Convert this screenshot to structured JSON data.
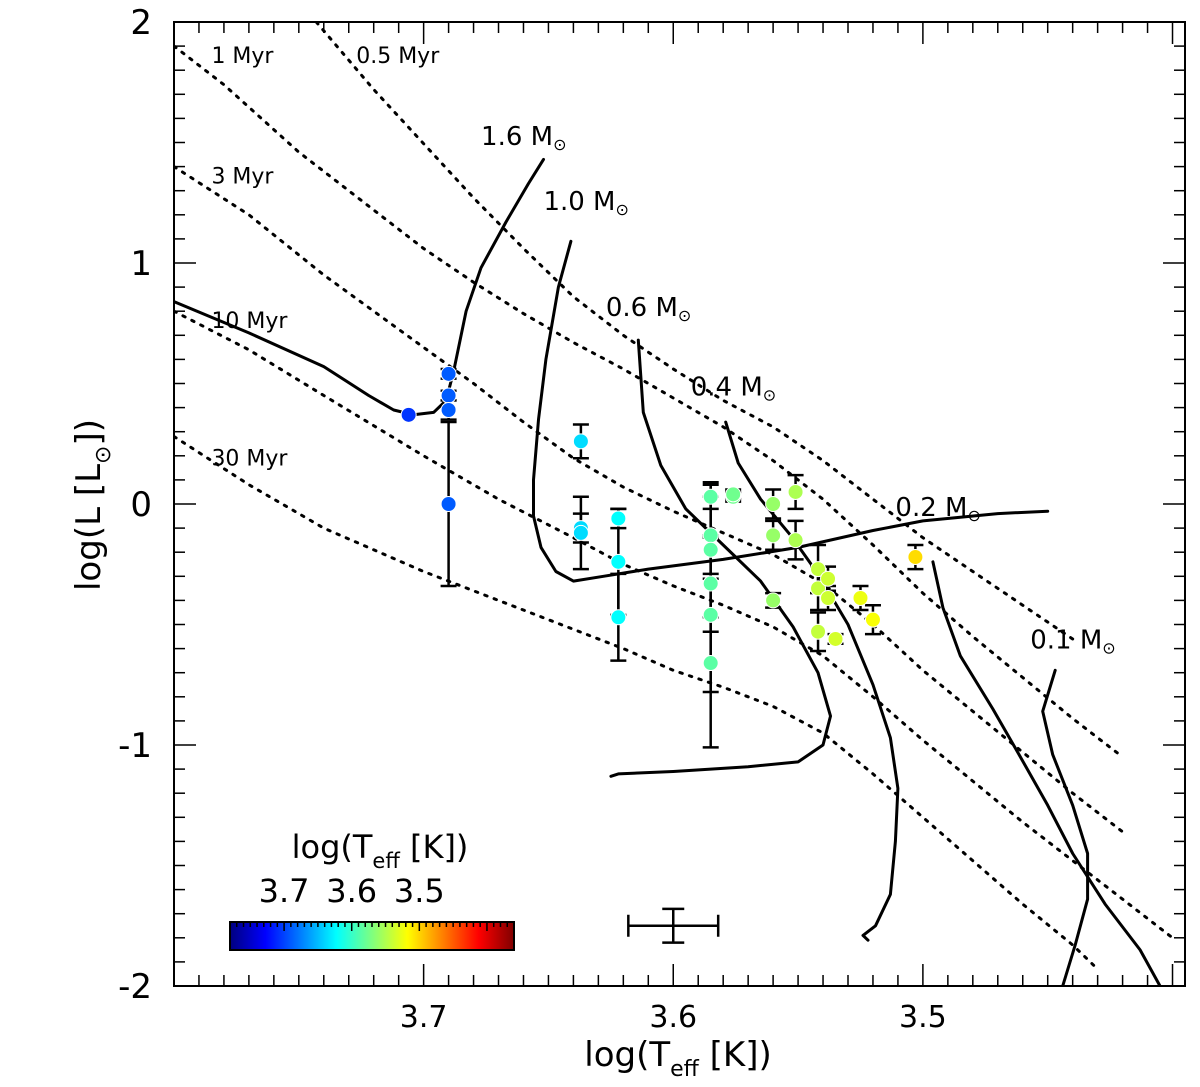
{
  "chart_data": {
    "type": "scatter",
    "title": "",
    "xlabel": {
      "main": "log(T",
      "sub": "eff",
      "tail": " [K])"
    },
    "ylabel": {
      "main": "log(L [L",
      "sub": "⊙",
      "tail": "])"
    },
    "xlim": [
      3.8,
      3.395
    ],
    "ylim": [
      -2,
      2
    ],
    "x_ticks": [
      {
        "value": 3.7,
        "label": "3.7"
      },
      {
        "value": 3.6,
        "label": "3.6"
      },
      {
        "value": 3.5,
        "label": "3.5"
      }
    ],
    "y_ticks": [
      {
        "value": 2,
        "label": "2"
      },
      {
        "value": 1,
        "label": "1"
      },
      {
        "value": 0,
        "label": "0"
      },
      {
        "value": -1,
        "label": "-1"
      },
      {
        "value": -2,
        "label": "-2"
      }
    ],
    "x_minor_step": 0.01,
    "y_minor_step": 0.1,
    "mass_tracks": [
      {
        "label": "1.6 M",
        "symbol": "⊙",
        "label_at": [
          3.677,
          1.49
        ],
        "points": [
          [
            3.8,
            0.84
          ],
          [
            3.77,
            0.71
          ],
          [
            3.74,
            0.57
          ],
          [
            3.722,
            0.45
          ],
          [
            3.712,
            0.39
          ],
          [
            3.704,
            0.37
          ],
          [
            3.696,
            0.38
          ],
          [
            3.691,
            0.43
          ],
          [
            3.688,
            0.55
          ],
          [
            3.683,
            0.8
          ],
          [
            3.677,
            0.98
          ],
          [
            3.667,
            1.17
          ],
          [
            3.658,
            1.33
          ],
          [
            3.652,
            1.43
          ]
        ]
      },
      {
        "label": "1.0 M",
        "symbol": "⊙",
        "label_at": [
          3.652,
          1.22
        ],
        "points": [
          [
            3.641,
            1.09
          ],
          [
            3.646,
            0.9
          ],
          [
            3.651,
            0.6
          ],
          [
            3.654,
            0.35
          ],
          [
            3.656,
            0.1
          ],
          [
            3.656,
            -0.05
          ],
          [
            3.653,
            -0.18
          ],
          [
            3.647,
            -0.28
          ],
          [
            3.64,
            -0.32
          ],
          [
            3.628,
            -0.3
          ],
          [
            3.61,
            -0.27
          ],
          [
            3.58,
            -0.23
          ],
          [
            3.55,
            -0.18
          ],
          [
            3.52,
            -0.11
          ],
          [
            3.5,
            -0.07
          ],
          [
            3.47,
            -0.04
          ],
          [
            3.45,
            -0.03
          ]
        ]
      },
      {
        "label": "0.6 M",
        "symbol": "⊙",
        "label_at": [
          3.627,
          0.78
        ],
        "points": [
          [
            3.614,
            0.68
          ],
          [
            3.612,
            0.38
          ],
          [
            3.605,
            0.16
          ],
          [
            3.595,
            -0.02
          ],
          [
            3.58,
            -0.17
          ],
          [
            3.565,
            -0.32
          ],
          [
            3.552,
            -0.51
          ],
          [
            3.542,
            -0.7
          ],
          [
            3.537,
            -0.88
          ],
          [
            3.54,
            -1.0
          ],
          [
            3.55,
            -1.07
          ],
          [
            3.57,
            -1.09
          ],
          [
            3.6,
            -1.11
          ],
          [
            3.622,
            -1.12
          ],
          [
            3.625,
            -1.13
          ]
        ]
      },
      {
        "label": "0.4 M",
        "symbol": "⊙",
        "label_at": [
          3.593,
          0.45
        ],
        "points": [
          [
            3.579,
            0.34
          ],
          [
            3.574,
            0.17
          ],
          [
            3.565,
            0.02
          ],
          [
            3.553,
            -0.13
          ],
          [
            3.542,
            -0.29
          ],
          [
            3.53,
            -0.5
          ],
          [
            3.52,
            -0.75
          ],
          [
            3.513,
            -0.97
          ],
          [
            3.51,
            -1.18
          ],
          [
            3.511,
            -1.4
          ],
          [
            3.513,
            -1.62
          ],
          [
            3.519,
            -1.75
          ],
          [
            3.524,
            -1.79
          ],
          [
            3.522,
            -1.81
          ]
        ]
      },
      {
        "label": "0.2 M",
        "symbol": "⊙",
        "label_at": [
          3.511,
          -0.05
        ],
        "points": [
          [
            3.496,
            -0.24
          ],
          [
            3.492,
            -0.43
          ],
          [
            3.485,
            -0.63
          ],
          [
            3.472,
            -0.85
          ],
          [
            3.462,
            -1.03
          ],
          [
            3.45,
            -1.25
          ],
          [
            3.44,
            -1.45
          ],
          [
            3.427,
            -1.66
          ],
          [
            3.413,
            -1.85
          ],
          [
            3.405,
            -2.0
          ]
        ]
      },
      {
        "label": "0.1 M",
        "symbol": "⊙",
        "label_at": [
          3.457,
          -0.6
        ],
        "points": [
          [
            3.447,
            -0.69
          ],
          [
            3.452,
            -0.86
          ],
          [
            3.448,
            -1.04
          ],
          [
            3.44,
            -1.25
          ],
          [
            3.434,
            -1.45
          ],
          [
            3.434,
            -1.64
          ],
          [
            3.439,
            -1.83
          ],
          [
            3.444,
            -2.0
          ]
        ]
      }
    ],
    "isochrones": [
      {
        "label": "0.5 Myr",
        "label_at": [
          3.727,
          1.83
        ],
        "points": [
          [
            3.743,
            2.0
          ],
          [
            3.72,
            1.72
          ],
          [
            3.68,
            1.27
          ],
          [
            3.66,
            1.06
          ],
          [
            3.64,
            0.86
          ],
          [
            3.62,
            0.7
          ],
          [
            3.6,
            0.56
          ],
          [
            3.58,
            0.43
          ],
          [
            3.56,
            0.32
          ],
          [
            3.54,
            0.18
          ],
          [
            3.52,
            0.02
          ],
          [
            3.5,
            -0.14
          ],
          [
            3.48,
            -0.28
          ],
          [
            3.46,
            -0.42
          ],
          [
            3.44,
            -0.56
          ]
        ]
      },
      {
        "label": "1 Myr",
        "label_at": [
          3.785,
          1.83
        ],
        "points": [
          [
            3.8,
            1.9
          ],
          [
            3.78,
            1.74
          ],
          [
            3.75,
            1.46
          ],
          [
            3.72,
            1.22
          ],
          [
            3.7,
            1.06
          ],
          [
            3.68,
            0.92
          ],
          [
            3.66,
            0.79
          ],
          [
            3.64,
            0.67
          ],
          [
            3.62,
            0.56
          ],
          [
            3.6,
            0.44
          ],
          [
            3.58,
            0.32
          ],
          [
            3.56,
            0.18
          ],
          [
            3.54,
            0.02
          ],
          [
            3.52,
            -0.17
          ],
          [
            3.5,
            -0.37
          ],
          [
            3.48,
            -0.55
          ],
          [
            3.46,
            -0.72
          ],
          [
            3.44,
            -0.89
          ],
          [
            3.42,
            -1.05
          ]
        ]
      },
      {
        "label": "3 Myr",
        "label_at": [
          3.785,
          1.33
        ],
        "points": [
          [
            3.8,
            1.4
          ],
          [
            3.77,
            1.2
          ],
          [
            3.74,
            0.95
          ],
          [
            3.7,
            0.65
          ],
          [
            3.68,
            0.5
          ],
          [
            3.66,
            0.34
          ],
          [
            3.64,
            0.19
          ],
          [
            3.62,
            0.07
          ],
          [
            3.6,
            -0.03
          ],
          [
            3.58,
            -0.12
          ],
          [
            3.56,
            -0.21
          ],
          [
            3.54,
            -0.33
          ],
          [
            3.52,
            -0.5
          ],
          [
            3.5,
            -0.69
          ],
          [
            3.48,
            -0.86
          ],
          [
            3.46,
            -1.03
          ],
          [
            3.44,
            -1.2
          ],
          [
            3.42,
            -1.36
          ]
        ]
      },
      {
        "label": "10 Myr",
        "label_at": [
          3.785,
          0.73
        ],
        "points": [
          [
            3.8,
            0.8
          ],
          [
            3.77,
            0.64
          ],
          [
            3.74,
            0.45
          ],
          [
            3.7,
            0.2
          ],
          [
            3.67,
            0.02
          ],
          [
            3.64,
            -0.14
          ],
          [
            3.62,
            -0.25
          ],
          [
            3.6,
            -0.34
          ],
          [
            3.58,
            -0.42
          ],
          [
            3.56,
            -0.51
          ],
          [
            3.54,
            -0.63
          ],
          [
            3.52,
            -0.8
          ],
          [
            3.5,
            -0.98
          ],
          [
            3.48,
            -1.15
          ],
          [
            3.46,
            -1.32
          ],
          [
            3.44,
            -1.48
          ],
          [
            3.42,
            -1.64
          ],
          [
            3.4,
            -1.8
          ]
        ]
      },
      {
        "label": "30 Myr",
        "label_at": [
          3.785,
          0.16
        ],
        "points": [
          [
            3.8,
            0.28
          ],
          [
            3.77,
            0.08
          ],
          [
            3.74,
            -0.1
          ],
          [
            3.7,
            -0.28
          ],
          [
            3.67,
            -0.4
          ],
          [
            3.64,
            -0.52
          ],
          [
            3.62,
            -0.6
          ],
          [
            3.6,
            -0.69
          ],
          [
            3.58,
            -0.76
          ],
          [
            3.56,
            -0.84
          ],
          [
            3.54,
            -0.95
          ],
          [
            3.52,
            -1.12
          ],
          [
            3.5,
            -1.3
          ],
          [
            3.48,
            -1.48
          ],
          [
            3.46,
            -1.66
          ],
          [
            3.44,
            -1.83
          ],
          [
            3.43,
            -1.93
          ]
        ]
      }
    ],
    "stars": [
      {
        "x": 3.706,
        "y": 0.37,
        "err": 0.0,
        "teff": 3.706
      },
      {
        "x": 3.69,
        "y": 0.54,
        "err": 0.02,
        "teff": 3.69
      },
      {
        "x": 3.69,
        "y": 0.45,
        "err": 0.02,
        "teff": 3.69
      },
      {
        "x": 3.69,
        "y": 0.39,
        "err": 0.04,
        "teff": 3.69
      },
      {
        "x": 3.69,
        "y": 0.0,
        "err": 0.34,
        "teff": 3.69
      },
      {
        "x": 3.637,
        "y": 0.26,
        "err": 0.07,
        "teff": 3.637
      },
      {
        "x": 3.637,
        "y": -0.1,
        "err": 0.06,
        "teff": 3.637
      },
      {
        "x": 3.637,
        "y": -0.12,
        "err": 0.15,
        "teff": 3.637
      },
      {
        "x": 3.622,
        "y": -0.06,
        "err": 0.04,
        "teff": 3.622
      },
      {
        "x": 3.622,
        "y": -0.24,
        "err": 0.22,
        "teff": 3.622
      },
      {
        "x": 3.622,
        "y": -0.47,
        "err": 0.18,
        "teff": 3.622
      },
      {
        "x": 3.585,
        "y": 0.03,
        "err": 0.05,
        "teff": 3.585
      },
      {
        "x": 3.585,
        "y": -0.13,
        "err": 0.16,
        "teff": 3.585
      },
      {
        "x": 3.585,
        "y": -0.19,
        "err": 0.28,
        "teff": 3.585
      },
      {
        "x": 3.585,
        "y": -0.33,
        "err": 0.2,
        "teff": 3.585
      },
      {
        "x": 3.585,
        "y": -0.46,
        "err": 0.32,
        "teff": 3.585
      },
      {
        "x": 3.585,
        "y": -0.66,
        "err": 0.35,
        "teff": 3.585
      },
      {
        "x": 3.576,
        "y": 0.03,
        "err": 0.02,
        "teff": 3.576
      },
      {
        "x": 3.576,
        "y": 0.04,
        "err": 0.02,
        "teff": 3.576
      },
      {
        "x": 3.56,
        "y": 0.0,
        "err": 0.06,
        "teff": 3.56
      },
      {
        "x": 3.56,
        "y": -0.13,
        "err": 0.06,
        "teff": 3.56
      },
      {
        "x": 3.56,
        "y": -0.4,
        "err": 0.03,
        "teff": 3.56
      },
      {
        "x": 3.551,
        "y": 0.05,
        "err": 0.07,
        "teff": 3.551
      },
      {
        "x": 3.551,
        "y": -0.15,
        "err": 0.08,
        "teff": 3.551
      },
      {
        "x": 3.542,
        "y": -0.27,
        "err": 0.1,
        "teff": 3.542
      },
      {
        "x": 3.542,
        "y": -0.35,
        "err": 0.09,
        "teff": 3.542
      },
      {
        "x": 3.542,
        "y": -0.53,
        "err": 0.08,
        "teff": 3.542
      },
      {
        "x": 3.538,
        "y": -0.31,
        "err": 0.05,
        "teff": 3.538
      },
      {
        "x": 3.538,
        "y": -0.39,
        "err": 0.05,
        "teff": 3.538
      },
      {
        "x": 3.535,
        "y": -0.56,
        "err": 0.02,
        "teff": 3.535
      },
      {
        "x": 3.525,
        "y": -0.39,
        "err": 0.05,
        "teff": 3.525
      },
      {
        "x": 3.52,
        "y": -0.48,
        "err": 0.06,
        "teff": 3.52
      },
      {
        "x": 3.503,
        "y": -0.22,
        "err": 0.05,
        "teff": 3.503
      }
    ],
    "typical_error": {
      "x": 3.6,
      "y": -1.75,
      "xerr": 0.018,
      "yerr": 0.07
    },
    "colorbar": {
      "title": {
        "main": "log(T",
        "sub": "eff",
        "tail": " [K])"
      },
      "range": [
        3.78,
        3.36
      ],
      "tick_labels": [
        {
          "value": 3.7,
          "label": "3.7"
        },
        {
          "value": 3.6,
          "label": "3.6"
        },
        {
          "value": 3.5,
          "label": "3.5"
        }
      ],
      "minor_step": 0.01,
      "colormap": "jet",
      "stops": [
        "#00007f",
        "#0000ff",
        "#007fff",
        "#00ffff",
        "#7fff7f",
        "#ffff00",
        "#ff7f00",
        "#ff0000",
        "#7f0000"
      ]
    }
  }
}
